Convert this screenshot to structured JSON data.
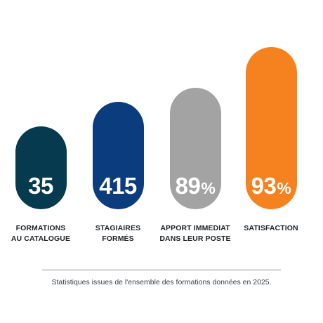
{
  "chart_data": {
    "type": "bar",
    "categories": [
      "FORMATIONS\nAU CATALOGUE",
      "STAGIAIRES\nFORMÉS",
      "APPORT IMMEDIAT\nDANS LEUR POSTE",
      "SATISFACTION"
    ],
    "values": [
      35,
      415,
      89,
      93
    ],
    "value_suffixes": [
      "",
      "",
      "%",
      "%"
    ],
    "colors": [
      "#063a4f",
      "#0b3c7d",
      "#a3a3a3",
      "#f5821f"
    ],
    "caption": "Statistiques issues de l'ensemble des formations données en 2025.",
    "grid": false,
    "legend": "none"
  }
}
